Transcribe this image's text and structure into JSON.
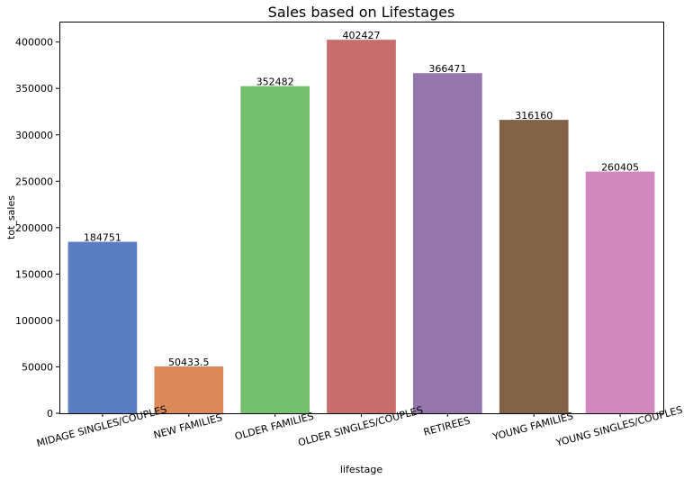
{
  "chart_data": {
    "type": "bar",
    "title": "Sales based on Lifestages",
    "xlabel": "lifestage",
    "ylabel": "tot_sales",
    "categories": [
      "MIDAGE SINGLES/COUPLES",
      "NEW FAMILIES",
      "OLDER FAMILIES",
      "OLDER SINGLES/COUPLES",
      "RETIREES",
      "YOUNG FAMILIES",
      "YOUNG SINGLES/COUPLES"
    ],
    "values": [
      184751,
      50433.5,
      352482,
      402427,
      366471,
      316160,
      260405
    ],
    "data_labels": [
      "184751",
      "50433.5",
      "352482",
      "402427",
      "366471",
      "316160",
      "260405"
    ],
    "colors": [
      "#5a7ec1",
      "#dc895a",
      "#74c06f",
      "#c76e6d",
      "#9475ac",
      "#826347",
      "#d189bd"
    ],
    "ylim": [
      0,
      422000
    ],
    "yticks": [
      0,
      50000,
      100000,
      150000,
      200000,
      250000,
      300000,
      350000,
      400000
    ],
    "grid": false,
    "legend": "none"
  }
}
